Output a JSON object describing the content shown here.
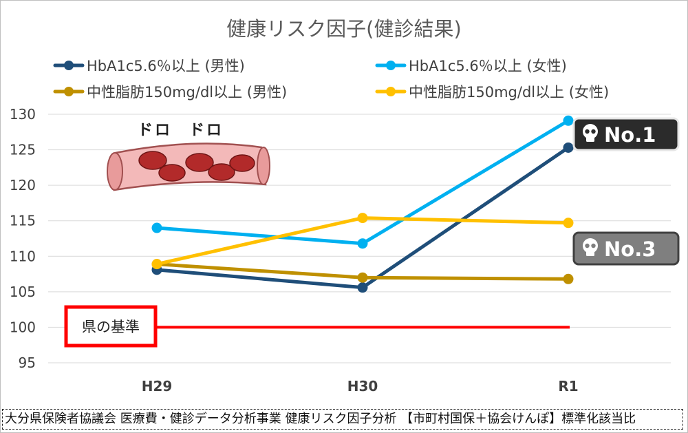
{
  "chart_data": {
    "type": "line",
    "title": "健康リスク因子(健診結果)",
    "categories": [
      "H29",
      "H30",
      "R1"
    ],
    "ylim": [
      95,
      130
    ],
    "yticks": [
      95,
      100,
      105,
      110,
      115,
      120,
      125,
      130
    ],
    "grid": "horizontal",
    "legend_position": "top",
    "series": [
      {
        "name": "HbA1c5.6％以上 (男性)",
        "color": "#1f4e79",
        "values": [
          108.1,
          105.6,
          125.3
        ]
      },
      {
        "name": "HbA1c5.6％以上 (女性)",
        "color": "#00b0f0",
        "values": [
          114.0,
          111.8,
          129.1
        ]
      },
      {
        "name": "中性脂肪150mg/dl以上 (男性)",
        "color": "#bf9000",
        "values": [
          108.9,
          107.0,
          106.8
        ]
      },
      {
        "name": "中性脂肪150mg/dl以上 (女性)",
        "color": "#ffc000",
        "values": [
          108.9,
          115.4,
          114.7
        ]
      }
    ],
    "reference_line": {
      "label": "県の基準",
      "value": 100,
      "color": "#ff0000"
    },
    "badges": [
      {
        "label": "No.1",
        "icon": "skull-icon",
        "series": 1
      },
      {
        "label": "No.3",
        "icon": "skull-icon",
        "series": 3
      }
    ],
    "illustration": {
      "label": "ドロ　ドロ",
      "icon": "blood-vessel-icon"
    }
  },
  "source_note": "大分県保険者協議会 医療費・健診データ分析事業 健康リスク因子分析 【市町村国保＋協会けんぽ】標準化該当比"
}
